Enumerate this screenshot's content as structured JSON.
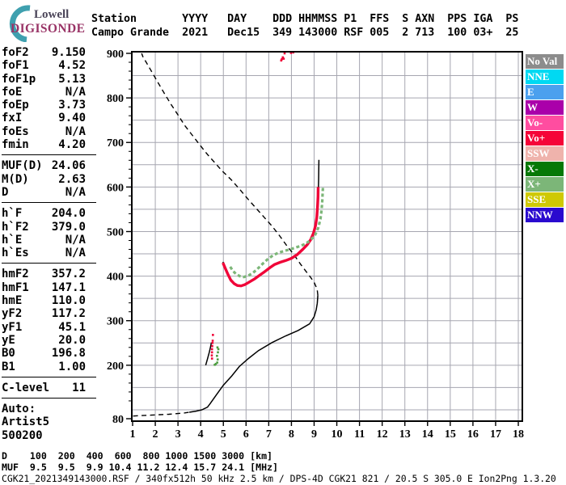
{
  "logo": {
    "line1": "Lowell",
    "line2": "DIGISONDE",
    "arc_color": "#3FA0AF"
  },
  "header": {
    "columns": [
      {
        "label": "Station",
        "value": "Campo Grande",
        "col": 0
      },
      {
        "label": "YYYY",
        "value": "2021",
        "col": 14
      },
      {
        "label": "DAY",
        "value": "Dec15",
        "col": 21
      },
      {
        "label": "DDD",
        "value": "349",
        "col": 28
      },
      {
        "label": "HHMMSS",
        "value": "143000",
        "col": 32
      },
      {
        "label": "P1",
        "value": "RSF",
        "col": 39
      },
      {
        "label": "FFS",
        "value": "005",
        "col": 43
      },
      {
        "label": "S",
        "value": "2",
        "col": 48
      },
      {
        "label": "AXN",
        "value": "713",
        "col": 50
      },
      {
        "label": "PPS",
        "value": "100",
        "col": 55
      },
      {
        "label": "IGA",
        "value": "03+",
        "col": 59
      },
      {
        "label": "PS",
        "value": "25",
        "col": 64
      }
    ]
  },
  "sidebar": {
    "groups": [
      {
        "rows": [
          [
            "foF2",
            "9.150"
          ],
          [
            "foF1",
            "4.52"
          ],
          [
            "foF1p",
            "5.13"
          ],
          [
            "foE",
            "N/A"
          ],
          [
            "foEp",
            "3.73"
          ],
          [
            "fxI",
            "9.40"
          ],
          [
            "foEs",
            "N/A"
          ],
          [
            "fmin",
            "4.20"
          ]
        ]
      },
      {
        "rows": [
          [
            "MUF(D)",
            "24.06"
          ],
          [
            "M(D)",
            "2.63"
          ],
          [
            "D",
            "N/A"
          ]
        ]
      },
      {
        "rows": [
          [
            "h`F",
            "204.0"
          ],
          [
            "h`F2",
            "379.0"
          ],
          [
            "h`E",
            "N/A"
          ],
          [
            "h`Es",
            "N/A"
          ]
        ]
      },
      {
        "rows": [
          [
            "hmF2",
            "357.2"
          ],
          [
            "hmF1",
            "147.1"
          ],
          [
            "hmE",
            "110.0"
          ],
          [
            "yF2",
            "117.2"
          ],
          [
            "yF1",
            "45.1"
          ],
          [
            "yE",
            "20.0"
          ],
          [
            "B0",
            "196.8"
          ],
          [
            "B1",
            "1.00"
          ]
        ]
      },
      {
        "rows": [
          [
            "C-level",
            "11"
          ]
        ]
      }
    ],
    "auto_lines": [
      "Auto:",
      "Artist5",
      "500200"
    ]
  },
  "legend": {
    "items": [
      {
        "label": "No Val",
        "color": "#8C8C8C"
      },
      {
        "label": "NNE",
        "color": "#00D9F2"
      },
      {
        "label": "E",
        "color": "#4BA0EE"
      },
      {
        "label": "W",
        "color": "#AA00AA"
      },
      {
        "label": "Vo-",
        "color": "#FF4DA0"
      },
      {
        "label": "Vo+",
        "color": "#F50438"
      },
      {
        "label": "SSW",
        "color": "#EFB3AC"
      },
      {
        "label": "X-",
        "color": "#067806"
      },
      {
        "label": "X+",
        "color": "#7CB678"
      },
      {
        "label": "SSE",
        "color": "#CFC904"
      },
      {
        "label": "NNW",
        "color": "#2A0ACF"
      }
    ]
  },
  "footer": {
    "d_label": "D",
    "distances_km": [
      "100",
      "200",
      "400",
      "600",
      "800",
      "1000",
      "1500",
      "3000"
    ],
    "d_unit": "[km]",
    "muf_label": "MUF",
    "muf_mhz": [
      "9.5",
      "9.5",
      "9.9",
      "10.4",
      "11.2",
      "12.4",
      "15.7",
      "24.1"
    ],
    "muf_unit": "[MHz]",
    "info_line": "CGK21_2021349143000.RSF / 340fx512h 50 kHz 2.5 km / DPS-4D CGK21 821 / 20.5 S 305.0 E Ion2Png 1.3.20"
  },
  "chart_data": {
    "type": "line",
    "title": "Digisonde ionogram: virtual/true height (km) vs frequency (MHz)",
    "xlabel": "MHz",
    "ylabel": "km",
    "xlim": [
      1,
      18.15
    ],
    "ylim": [
      77,
      904
    ],
    "x_ticks": [
      1,
      2,
      3,
      4,
      5,
      6,
      7,
      8,
      9,
      10,
      11,
      12,
      13,
      14,
      15,
      16,
      17,
      18
    ],
    "y_major_ticks": [
      900,
      800,
      700,
      600,
      500,
      400,
      300,
      200,
      80
    ],
    "y_grid_step_km": 50,
    "y_minor_tick_step_km": 20,
    "grid": true,
    "grid_color": "#A6A6B0",
    "legend_position": "right",
    "series": [
      {
        "name": "profile-bottom-dashed",
        "style": "dashed",
        "color": "#000000",
        "points": [
          [
            1.02,
            86
          ],
          [
            1.4,
            87
          ],
          [
            1.8,
            88
          ],
          [
            2.2,
            89
          ],
          [
            2.6,
            90
          ],
          [
            3.0,
            91.5
          ],
          [
            3.3,
            93
          ],
          [
            3.5,
            94.5
          ]
        ]
      },
      {
        "name": "true-height-profile",
        "style": "solid",
        "color": "#000000",
        "points": [
          [
            3.5,
            94.5
          ],
          [
            3.8,
            97
          ],
          [
            4.05,
            100
          ],
          [
            4.3,
            106
          ],
          [
            4.42,
            114
          ],
          [
            4.53,
            122
          ],
          [
            4.7,
            134
          ],
          [
            5.0,
            155
          ],
          [
            5.37,
            176
          ],
          [
            5.7,
            197
          ],
          [
            6.1,
            215
          ],
          [
            6.55,
            233
          ],
          [
            7.15,
            251
          ],
          [
            7.75,
            266
          ],
          [
            8.3,
            278
          ],
          [
            8.8,
            293
          ],
          [
            9.0,
            309
          ],
          [
            9.09,
            324
          ],
          [
            9.14,
            339
          ],
          [
            9.165,
            357
          ]
        ]
      },
      {
        "name": "profile-topside-dashed",
        "style": "dashed",
        "color": "#000000",
        "points": [
          [
            9.165,
            357
          ],
          [
            9.14,
            368
          ],
          [
            9.08,
            377
          ],
          [
            9.0,
            386
          ],
          [
            8.85,
            397
          ],
          [
            8.65,
            410
          ],
          [
            8.4,
            427
          ],
          [
            8.1,
            449
          ],
          [
            7.8,
            468
          ],
          [
            7.5,
            489
          ],
          [
            7.15,
            512
          ],
          [
            6.8,
            532
          ],
          [
            6.45,
            552
          ],
          [
            6.1,
            572
          ],
          [
            5.75,
            593
          ],
          [
            5.35,
            616
          ],
          [
            4.95,
            636
          ],
          [
            4.6,
            656
          ],
          [
            4.3,
            673
          ],
          [
            4.0,
            692
          ],
          [
            3.65,
            715
          ],
          [
            3.3,
            738
          ],
          [
            3.0,
            762
          ],
          [
            2.7,
            785
          ],
          [
            2.4,
            810
          ],
          [
            2.1,
            836
          ],
          [
            1.85,
            858
          ],
          [
            1.6,
            880
          ],
          [
            1.45,
            893
          ],
          [
            1.4,
            900
          ]
        ]
      },
      {
        "name": "otrace-fit-line",
        "style": "solid",
        "color": "#000000",
        "points": [
          [
            4.98,
            432
          ],
          [
            5.08,
            419
          ],
          [
            5.2,
            405
          ],
          [
            5.33,
            392
          ],
          [
            5.48,
            384
          ],
          [
            5.62,
            380
          ],
          [
            5.78,
            379
          ],
          [
            5.95,
            382
          ],
          [
            6.15,
            388
          ],
          [
            6.38,
            395
          ],
          [
            6.6,
            403
          ],
          [
            6.82,
            411
          ],
          [
            7.05,
            420
          ],
          [
            7.25,
            427
          ],
          [
            7.5,
            432
          ],
          [
            7.75,
            436
          ],
          [
            8.0,
            441
          ],
          [
            8.25,
            449
          ],
          [
            8.5,
            461
          ],
          [
            8.7,
            472
          ],
          [
            8.85,
            483
          ],
          [
            8.97,
            497
          ],
          [
            9.06,
            514
          ],
          [
            9.12,
            533
          ],
          [
            9.16,
            557
          ],
          [
            9.185,
            588
          ],
          [
            9.2,
            620
          ],
          [
            9.21,
            661
          ]
        ]
      },
      {
        "name": "otrace-fit-line-low",
        "style": "solid",
        "color": "#000000",
        "points": [
          [
            4.22,
            200
          ],
          [
            4.3,
            214
          ],
          [
            4.38,
            229
          ],
          [
            4.44,
            242
          ],
          [
            4.47,
            251
          ]
        ]
      },
      {
        "name": "otrace-echoes",
        "style": "band",
        "color": "#F00438",
        "points": [
          [
            4.98,
            430
          ],
          [
            5.08,
            418
          ],
          [
            5.2,
            404
          ],
          [
            5.33,
            391
          ],
          [
            5.48,
            383
          ],
          [
            5.62,
            379
          ],
          [
            5.78,
            378
          ],
          [
            5.95,
            381
          ],
          [
            6.15,
            387
          ],
          [
            6.38,
            394
          ],
          [
            6.6,
            402
          ],
          [
            6.82,
            410
          ],
          [
            7.05,
            419
          ],
          [
            7.25,
            426
          ],
          [
            7.5,
            431
          ],
          [
            7.75,
            435
          ],
          [
            8.0,
            440
          ],
          [
            8.25,
            448
          ],
          [
            8.5,
            460
          ],
          [
            8.7,
            471
          ],
          [
            8.85,
            482
          ],
          [
            8.97,
            496
          ],
          [
            9.06,
            513
          ],
          [
            9.12,
            532
          ],
          [
            9.15,
            556
          ],
          [
            9.17,
            578
          ],
          [
            9.18,
            600
          ]
        ]
      },
      {
        "name": "xtrace-echoes",
        "style": "band-dashed",
        "color": "#7CB678",
        "points": [
          [
            5.3,
            421
          ],
          [
            5.42,
            412
          ],
          [
            5.55,
            405
          ],
          [
            5.72,
            400
          ],
          [
            5.9,
            398
          ],
          [
            6.1,
            401
          ],
          [
            6.3,
            407
          ],
          [
            6.5,
            416
          ],
          [
            6.72,
            427
          ],
          [
            6.95,
            438
          ],
          [
            7.2,
            447
          ],
          [
            7.45,
            453
          ],
          [
            7.72,
            457
          ],
          [
            8.0,
            461
          ],
          [
            8.3,
            466
          ],
          [
            8.6,
            472
          ],
          [
            8.85,
            481
          ],
          [
            9.05,
            493
          ],
          [
            9.18,
            508
          ],
          [
            9.28,
            528
          ],
          [
            9.33,
            548
          ],
          [
            9.36,
            570
          ],
          [
            9.38,
            590
          ],
          [
            9.39,
            600
          ]
        ]
      },
      {
        "name": "otrace-low-echoes",
        "style": "dots",
        "color": "#F00438",
        "points": [
          [
            4.5,
            215
          ],
          [
            4.49,
            222
          ],
          [
            4.5,
            229
          ],
          [
            4.5,
            236
          ],
          [
            4.51,
            243
          ],
          [
            4.52,
            250
          ],
          [
            4.53,
            255
          ],
          [
            4.54,
            268
          ]
        ]
      },
      {
        "name": "xtrace-low-echoes",
        "style": "dots",
        "color": "#4E9E42",
        "points": [
          [
            4.62,
            201
          ],
          [
            4.67,
            203
          ],
          [
            4.73,
            206
          ],
          [
            4.75,
            213
          ],
          [
            4.72,
            221
          ],
          [
            4.76,
            229
          ],
          [
            4.78,
            236
          ],
          [
            4.74,
            240
          ]
        ]
      },
      {
        "name": "noise-echo-specks",
        "style": "dots",
        "color": "#F00438",
        "points": [
          [
            7.55,
            884
          ],
          [
            7.58,
            887
          ],
          [
            7.62,
            891
          ],
          [
            7.66,
            888
          ],
          [
            7.7,
            900
          ],
          [
            7.98,
            901
          ],
          [
            8.08,
            902
          ]
        ]
      }
    ]
  }
}
